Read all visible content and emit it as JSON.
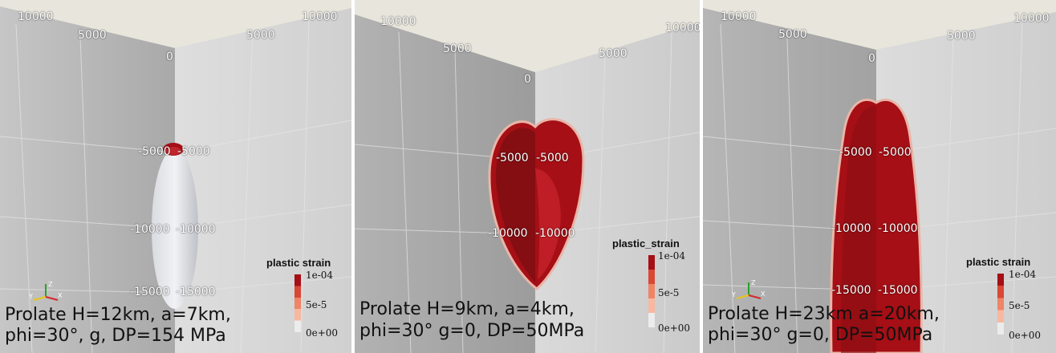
{
  "panels": [
    {
      "axis_labels": {
        "top_left_far": "10000",
        "top_left_near": "5000",
        "top_right_near": "5000",
        "top_right_far": "10000",
        "corner": "0",
        "d5000_left": "-5000",
        "d5000_right": "-5000",
        "d10000_left": "-10000",
        "d10000_right": "-10000",
        "d15000_left": "-15000",
        "d15000_right": "-15000"
      },
      "caption_line1": "Prolate H=12km, a=7km,",
      "caption_line2": "phi=30°, g, DP=154 MPa",
      "colorbar": {
        "title": "plastic strain",
        "max": "1e-04",
        "mid": "5e-5",
        "min": "0e+00"
      },
      "triad": {
        "y": "Y",
        "z": "Z",
        "x": "X"
      }
    },
    {
      "axis_labels": {
        "top_left_far": "10000",
        "top_left_near": "5000",
        "top_right_near": "5000",
        "top_right_far": "10000",
        "corner": "0",
        "d5000_left": "-5000",
        "d5000_right": "-5000",
        "d10000_left": "-10000",
        "d10000_right": "-10000"
      },
      "caption_line1": "Prolate H=9km, a=4km,",
      "caption_line2": "phi=30° g=0, DP=50MPa",
      "colorbar": {
        "title": "plastic_strain",
        "max": "1e-04",
        "mid": "5e-5",
        "min": "0e+00"
      }
    },
    {
      "axis_labels": {
        "top_left_far": "10000",
        "top_left_near": "5000",
        "top_right_near": "5000",
        "top_right_far": "10000",
        "corner": "0",
        "d5000_left": "-5000",
        "d5000_right": "-5000",
        "d10000_left": "-10000",
        "d10000_right": "-10000",
        "d15000_left": "-15000",
        "d15000_right": "-15000"
      },
      "caption_line1": "Prolate H=23km a=20km,",
      "caption_line2": "phi=30° g=0, DP=50MPa",
      "colorbar": {
        "title": "plastic strain",
        "max": "1e-04",
        "mid": "5e-5",
        "min": "0e+00"
      },
      "triad": {
        "y": "Y",
        "z": "Z",
        "x": "X"
      }
    }
  ],
  "colors": {
    "left_face": "#b4b4b4",
    "right_face": "#d6d6d6",
    "top_face": "#e8e6dc",
    "strain_high": "#a50f15",
    "strain_zero": "#ececec"
  }
}
